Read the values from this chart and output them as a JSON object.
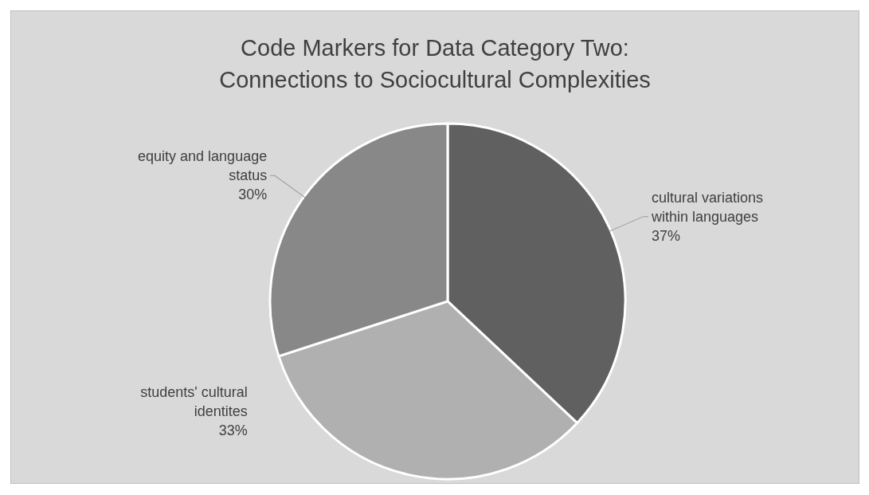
{
  "chart_data": {
    "type": "pie",
    "title": "Code Markers for Data Category Two:\nConnections to Sociocultural Complexities",
    "categories": [
      "cultural variations within languages",
      "students' cultural identites",
      "equity and language status"
    ],
    "values": [
      37,
      33,
      30
    ],
    "colors": [
      "#606060",
      "#b0b0b0",
      "#888888"
    ],
    "value_labels": [
      "37%",
      "33%",
      "30%"
    ],
    "legend": false
  }
}
